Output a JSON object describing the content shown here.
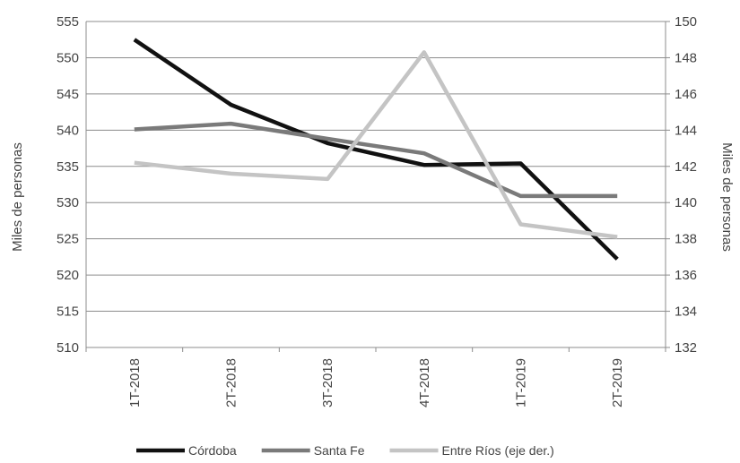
{
  "chart_data": {
    "type": "line",
    "categories": [
      "1T-2018",
      "2T-2018",
      "3T-2018",
      "4T-2018",
      "1T-2019",
      "2T-2019"
    ],
    "ylabel": "Miles de personas",
    "y2label": "Miles de personas",
    "ylim": [
      510,
      555
    ],
    "y2lim": [
      132,
      150
    ],
    "yticks": [
      "510",
      "515",
      "520",
      "525",
      "530",
      "535",
      "540",
      "545",
      "550",
      "555"
    ],
    "y2ticks": [
      "132",
      "134",
      "136",
      "138",
      "140",
      "142",
      "144",
      "146",
      "148",
      "150"
    ],
    "grid": true,
    "legend_position": "bottom",
    "series": [
      {
        "name": "Córdoba",
        "axis": "left",
        "color": "#111111",
        "values": [
          552.5,
          543.5,
          538.2,
          535.2,
          535.4,
          522.2
        ]
      },
      {
        "name": "Santa Fe",
        "axis": "left",
        "color": "#7a7a7a",
        "values": [
          540.1,
          540.9,
          538.8,
          536.8,
          530.9,
          530.9
        ]
      },
      {
        "name": "Entre Ríos (eje der.)",
        "axis": "right",
        "color": "#c4c4c4",
        "values": [
          142.2,
          141.6,
          141.3,
          148.3,
          138.8,
          138.1
        ]
      }
    ]
  }
}
